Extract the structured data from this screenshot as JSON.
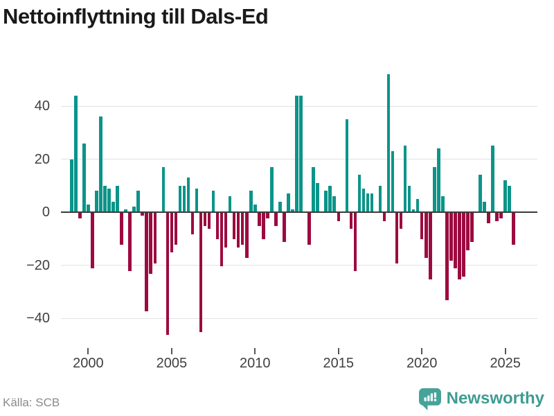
{
  "title": "Nettoinflyttning till Dals-Ed",
  "source": "Källa: SCB",
  "logo": {
    "text": "Newsworthy"
  },
  "colors": {
    "positive_bar": "#0c9489",
    "negative_bar": "#9c0b3f",
    "grid": "#e2e2e2",
    "zero_line": "#3b3b3b",
    "axis_text": "#404040",
    "title_text": "#1a1a1a",
    "source_text": "#8a8a8a",
    "logo_teal": "#45a39a",
    "background": "#ffffff"
  },
  "y_axis": {
    "ticks": [
      {
        "label": "40",
        "value": 40
      },
      {
        "label": "20",
        "value": 20
      },
      {
        "label": "0",
        "value": 0
      },
      {
        "label": "−20",
        "value": -20
      },
      {
        "label": "−40",
        "value": -40
      }
    ],
    "min": -50,
    "max": 55
  },
  "x_axis": {
    "ticks": [
      {
        "label": "2000",
        "index": 4
      },
      {
        "label": "2005",
        "index": 24
      },
      {
        "label": "2010",
        "index": 44
      },
      {
        "label": "2015",
        "index": 64
      },
      {
        "label": "2020",
        "index": 84
      },
      {
        "label": "2025",
        "index": 104
      }
    ]
  },
  "chart_data": {
    "type": "bar",
    "title": "Nettoinflyttning till Dals-Ed",
    "frequency": "quarterly",
    "x_start": "1999Q1",
    "x_end": "2025Q3",
    "xlabel": "",
    "ylabel": "",
    "ylim": [
      -50,
      55
    ],
    "grid": "horizontal",
    "legend": "none",
    "x": [
      "1999Q1",
      "1999Q2",
      "1999Q3",
      "1999Q4",
      "2000Q1",
      "2000Q2",
      "2000Q3",
      "2000Q4",
      "2001Q1",
      "2001Q2",
      "2001Q3",
      "2001Q4",
      "2002Q1",
      "2002Q2",
      "2002Q3",
      "2002Q4",
      "2003Q1",
      "2003Q2",
      "2003Q3",
      "2003Q4",
      "2004Q1",
      "2004Q2",
      "2004Q3",
      "2004Q4",
      "2005Q1",
      "2005Q2",
      "2005Q3",
      "2005Q4",
      "2006Q1",
      "2006Q2",
      "2006Q3",
      "2006Q4",
      "2007Q1",
      "2007Q2",
      "2007Q3",
      "2007Q4",
      "2008Q1",
      "2008Q2",
      "2008Q3",
      "2008Q4",
      "2009Q1",
      "2009Q2",
      "2009Q3",
      "2009Q4",
      "2010Q1",
      "2010Q2",
      "2010Q3",
      "2010Q4",
      "2011Q1",
      "2011Q2",
      "2011Q3",
      "2011Q4",
      "2012Q1",
      "2012Q2",
      "2012Q3",
      "2012Q4",
      "2013Q1",
      "2013Q2",
      "2013Q3",
      "2013Q4",
      "2014Q1",
      "2014Q2",
      "2014Q3",
      "2014Q4",
      "2015Q1",
      "2015Q2",
      "2015Q3",
      "2015Q4",
      "2016Q1",
      "2016Q2",
      "2016Q3",
      "2016Q4",
      "2017Q1",
      "2017Q2",
      "2017Q3",
      "2017Q4",
      "2018Q1",
      "2018Q2",
      "2018Q3",
      "2018Q4",
      "2019Q1",
      "2019Q2",
      "2019Q3",
      "2019Q4",
      "2020Q1",
      "2020Q2",
      "2020Q3",
      "2020Q4",
      "2021Q1",
      "2021Q2",
      "2021Q3",
      "2021Q4",
      "2022Q1",
      "2022Q2",
      "2022Q3",
      "2022Q4",
      "2023Q1",
      "2023Q2",
      "2023Q3",
      "2023Q4",
      "2024Q1",
      "2024Q2",
      "2024Q3",
      "2024Q4",
      "2025Q1",
      "2025Q2",
      "2025Q3"
    ],
    "values": [
      20,
      44,
      -2,
      26,
      3,
      -21,
      8,
      36,
      10,
      9,
      4,
      10,
      -12,
      1,
      -22,
      2,
      8,
      -1,
      -37,
      -23,
      -19,
      0,
      17,
      -46,
      -15,
      -12,
      10,
      10,
      13,
      -8,
      9,
      -45,
      -5,
      -6,
      8,
      -10,
      -20,
      -13,
      6,
      -10,
      -13,
      -12,
      -17,
      8,
      3,
      -5,
      -10,
      -2,
      17,
      -5,
      4,
      -11,
      7,
      1,
      44,
      44,
      0,
      -12,
      17,
      11,
      0,
      8,
      10,
      6,
      -3,
      0,
      35,
      -6,
      -22,
      14,
      9,
      7,
      7,
      0,
      10,
      -3,
      52,
      23,
      -19,
      -6,
      25,
      10,
      1,
      5,
      -10,
      -17,
      -25,
      17,
      24,
      6,
      -33,
      -18,
      -21,
      -25,
      -24,
      -14,
      -11,
      0,
      14,
      4,
      -4,
      25,
      -3,
      -2,
      12,
      10,
      -12
    ]
  }
}
